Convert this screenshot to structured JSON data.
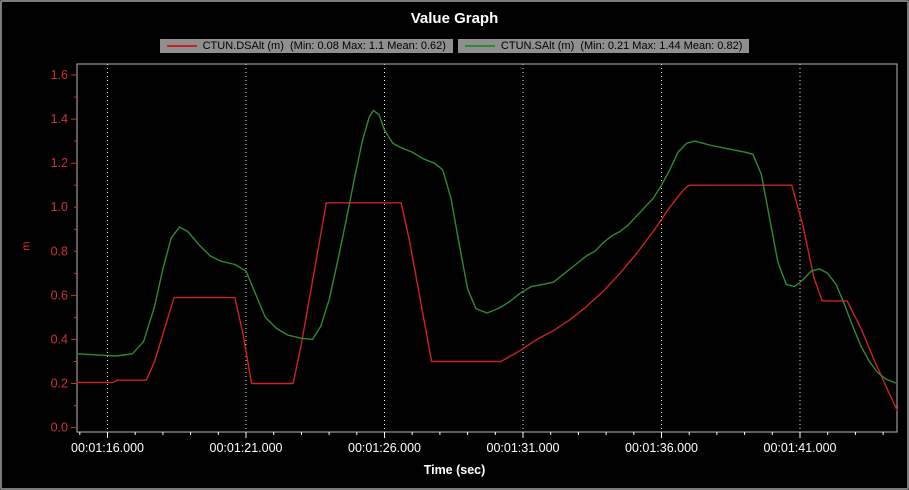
{
  "title": "Value Graph",
  "legend": [
    {
      "label": "CTUN.DSAlt (m)  (Min: 0.08 Max: 1.1 Mean: 0.62)",
      "color": "#cc2222"
    },
    {
      "label": "CTUN.SAlt (m)  (Min: 0.21 Max: 1.44 Mean: 0.82)",
      "color": "#2e8b2e"
    }
  ],
  "chart_data": {
    "type": "line",
    "title": "Value Graph",
    "xlabel": "Time (sec)",
    "ylabel": "m",
    "grid": "vertical-dotted-white",
    "legend_position": "top-center",
    "x_tick_labels": [
      "00:01:16.000",
      "00:01:21.000",
      "00:01:26.000",
      "00:01:31.000",
      "00:01:36.000",
      "00:01:41.000"
    ],
    "x_tick_values": [
      76,
      81,
      86,
      91,
      96,
      101
    ],
    "xlim": [
      74.9,
      104.5
    ],
    "y_tick_labels": [
      "0.0",
      "0.2",
      "0.4",
      "0.6",
      "0.8",
      "1.0",
      "1.2",
      "1.4",
      "1.6"
    ],
    "y_tick_values": [
      0,
      0.2,
      0.4,
      0.6,
      0.8,
      1.0,
      1.2,
      1.4,
      1.6
    ],
    "ylim": [
      -0.02,
      1.65
    ],
    "colors": {
      "axis_y": "#cc3333",
      "axis_x": "#ffffff",
      "grid": "#e8e8e8",
      "plot_border": "#b8b8b8",
      "background": "#000000"
    },
    "series": [
      {
        "name": "CTUN.DSAlt (m)",
        "min": 0.08,
        "max": 1.1,
        "mean": 0.62,
        "color": "#cc2222",
        "points": [
          [
            74.9,
            0.205
          ],
          [
            76.2,
            0.205
          ],
          [
            76.35,
            0.215
          ],
          [
            77.4,
            0.215
          ],
          [
            77.7,
            0.3
          ],
          [
            78.4,
            0.59
          ],
          [
            80.6,
            0.59
          ],
          [
            80.9,
            0.42
          ],
          [
            81.2,
            0.2
          ],
          [
            82.7,
            0.2
          ],
          [
            83.0,
            0.38
          ],
          [
            83.9,
            1.02
          ],
          [
            86.6,
            1.02
          ],
          [
            86.9,
            0.85
          ],
          [
            87.7,
            0.3
          ],
          [
            90.2,
            0.3
          ],
          [
            90.9,
            0.35
          ],
          [
            91.5,
            0.4
          ],
          [
            92.1,
            0.44
          ],
          [
            92.7,
            0.49
          ],
          [
            93.3,
            0.55
          ],
          [
            93.9,
            0.62
          ],
          [
            94.5,
            0.7
          ],
          [
            95.1,
            0.79
          ],
          [
            95.7,
            0.89
          ],
          [
            96.3,
            1.0
          ],
          [
            96.8,
            1.08
          ],
          [
            97.0,
            1.1
          ],
          [
            100.7,
            1.1
          ],
          [
            101.1,
            0.92
          ],
          [
            101.5,
            0.68
          ],
          [
            101.8,
            0.575
          ],
          [
            102.7,
            0.575
          ],
          [
            103.2,
            0.45
          ],
          [
            103.7,
            0.3
          ],
          [
            104.2,
            0.16
          ],
          [
            104.5,
            0.08
          ]
        ]
      },
      {
        "name": "CTUN.SAlt (m)",
        "min": 0.21,
        "max": 1.44,
        "mean": 0.82,
        "color": "#2e8b2e",
        "points": [
          [
            74.9,
            0.335
          ],
          [
            75.6,
            0.33
          ],
          [
            76.3,
            0.325
          ],
          [
            76.9,
            0.335
          ],
          [
            77.3,
            0.39
          ],
          [
            77.7,
            0.55
          ],
          [
            78.0,
            0.72
          ],
          [
            78.3,
            0.86
          ],
          [
            78.6,
            0.91
          ],
          [
            78.9,
            0.89
          ],
          [
            79.3,
            0.83
          ],
          [
            79.7,
            0.78
          ],
          [
            80.1,
            0.755
          ],
          [
            80.6,
            0.74
          ],
          [
            81.0,
            0.71
          ],
          [
            81.3,
            0.62
          ],
          [
            81.7,
            0.5
          ],
          [
            82.1,
            0.45
          ],
          [
            82.5,
            0.42
          ],
          [
            83.0,
            0.405
          ],
          [
            83.4,
            0.4
          ],
          [
            83.7,
            0.46
          ],
          [
            84.0,
            0.58
          ],
          [
            84.3,
            0.75
          ],
          [
            84.6,
            0.93
          ],
          [
            84.9,
            1.12
          ],
          [
            85.2,
            1.3
          ],
          [
            85.45,
            1.41
          ],
          [
            85.6,
            1.44
          ],
          [
            85.8,
            1.42
          ],
          [
            86.0,
            1.35
          ],
          [
            86.3,
            1.29
          ],
          [
            86.6,
            1.27
          ],
          [
            87.0,
            1.25
          ],
          [
            87.4,
            1.22
          ],
          [
            87.8,
            1.2
          ],
          [
            88.1,
            1.17
          ],
          [
            88.4,
            1.04
          ],
          [
            88.7,
            0.83
          ],
          [
            89.0,
            0.63
          ],
          [
            89.3,
            0.54
          ],
          [
            89.7,
            0.52
          ],
          [
            90.1,
            0.54
          ],
          [
            90.5,
            0.57
          ],
          [
            90.9,
            0.61
          ],
          [
            91.3,
            0.64
          ],
          [
            91.7,
            0.65
          ],
          [
            92.1,
            0.66
          ],
          [
            92.5,
            0.7
          ],
          [
            92.9,
            0.74
          ],
          [
            93.3,
            0.78
          ],
          [
            93.6,
            0.8
          ],
          [
            93.9,
            0.84
          ],
          [
            94.2,
            0.87
          ],
          [
            94.5,
            0.89
          ],
          [
            94.8,
            0.92
          ],
          [
            95.1,
            0.96
          ],
          [
            95.4,
            1.0
          ],
          [
            95.7,
            1.04
          ],
          [
            96.0,
            1.1
          ],
          [
            96.3,
            1.17
          ],
          [
            96.6,
            1.25
          ],
          [
            96.9,
            1.29
          ],
          [
            97.2,
            1.3
          ],
          [
            97.5,
            1.29
          ],
          [
            97.8,
            1.28
          ],
          [
            98.2,
            1.27
          ],
          [
            98.6,
            1.26
          ],
          [
            99.0,
            1.25
          ],
          [
            99.3,
            1.24
          ],
          [
            99.6,
            1.15
          ],
          [
            99.9,
            0.95
          ],
          [
            100.2,
            0.75
          ],
          [
            100.5,
            0.65
          ],
          [
            100.8,
            0.64
          ],
          [
            101.1,
            0.67
          ],
          [
            101.4,
            0.71
          ],
          [
            101.7,
            0.72
          ],
          [
            102.0,
            0.7
          ],
          [
            102.3,
            0.65
          ],
          [
            102.6,
            0.56
          ],
          [
            102.9,
            0.46
          ],
          [
            103.2,
            0.37
          ],
          [
            103.5,
            0.3
          ],
          [
            103.8,
            0.25
          ],
          [
            104.1,
            0.22
          ],
          [
            104.4,
            0.205
          ],
          [
            104.5,
            0.2
          ]
        ]
      }
    ]
  }
}
